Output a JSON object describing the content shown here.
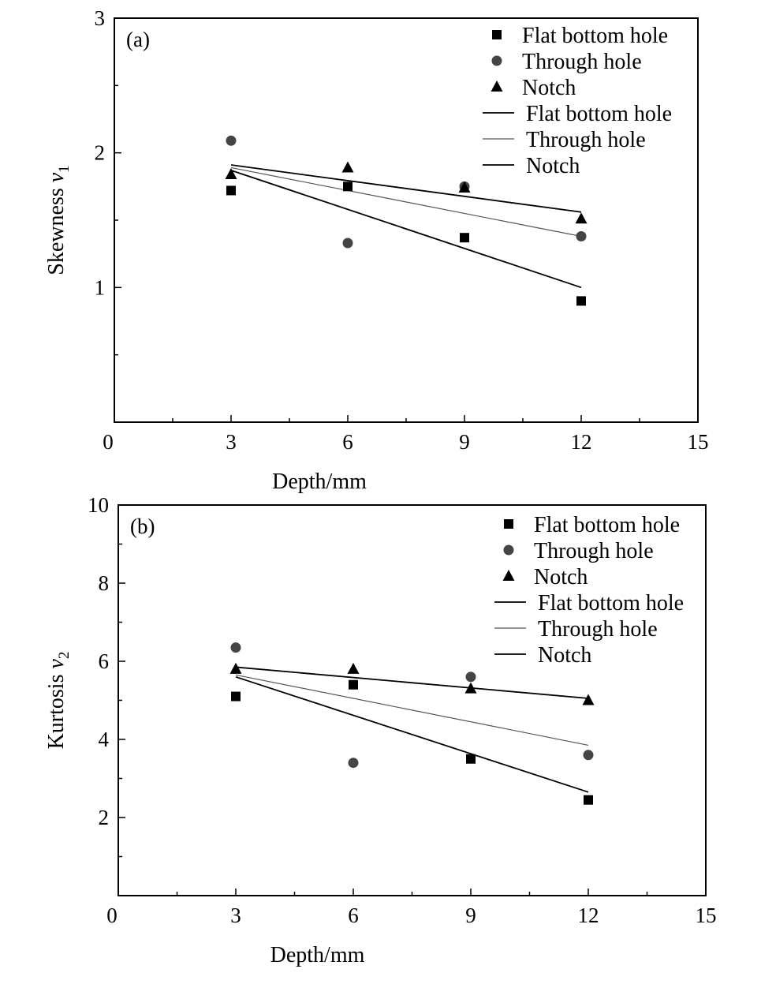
{
  "chart_data": [
    {
      "type": "scatter",
      "panel_label": "(a)",
      "xlabel": "Depth/mm",
      "ylabel_main": "Skewness ",
      "ylabel_var": "v",
      "ylabel_sub": "1",
      "xlim": [
        0,
        15
      ],
      "ylim": [
        0,
        3
      ],
      "xticks": [
        0,
        3,
        6,
        9,
        12,
        15
      ],
      "xtick_labels": [
        "0",
        "3",
        "6",
        "9",
        "12",
        "15"
      ],
      "yticks": [
        1,
        2,
        3
      ],
      "ytick_labels": [
        "1",
        "2",
        "3"
      ],
      "x_minor_step": 1.5,
      "y_minor_step": 0.5,
      "series": [
        {
          "name": "Flat bottom hole",
          "marker": "square",
          "color": "#000000",
          "x": [
            3,
            6,
            9,
            12
          ],
          "y": [
            1.72,
            1.75,
            1.37,
            0.9
          ]
        },
        {
          "name": "Through hole",
          "marker": "circle",
          "color": "#444444",
          "x": [
            3,
            6,
            9,
            12
          ],
          "y": [
            2.09,
            1.33,
            1.75,
            1.38
          ]
        },
        {
          "name": "Notch",
          "marker": "triangle",
          "color": "#000000",
          "x": [
            3,
            6,
            9,
            12
          ],
          "y": [
            1.84,
            1.89,
            1.74,
            1.51
          ]
        }
      ],
      "fits": [
        {
          "name": "Flat bottom hole",
          "color": "#000000",
          "width": 1.8,
          "x": [
            3,
            12
          ],
          "y": [
            1.87,
            1.0
          ]
        },
        {
          "name": "Through hole",
          "color": "#555555",
          "width": 1.2,
          "x": [
            3,
            12
          ],
          "y": [
            1.89,
            1.38
          ]
        },
        {
          "name": "Notch",
          "color": "#000000",
          "width": 1.8,
          "x": [
            3,
            12
          ],
          "y": [
            1.91,
            1.56
          ]
        }
      ],
      "legend": {
        "position": "top-right",
        "entries": [
          {
            "label": "Flat bottom hole",
            "kind": "marker",
            "marker": "square",
            "color": "#000000"
          },
          {
            "label": "Through hole",
            "kind": "marker",
            "marker": "circle",
            "color": "#444444"
          },
          {
            "label": "Notch",
            "kind": "marker",
            "marker": "triangle",
            "color": "#000000"
          },
          {
            "label": "Flat bottom hole",
            "kind": "line",
            "color": "#000000"
          },
          {
            "label": "Through hole",
            "kind": "line",
            "color": "#555555"
          },
          {
            "label": "Notch",
            "kind": "line",
            "color": "#000000"
          }
        ]
      }
    },
    {
      "type": "scatter",
      "panel_label": "(b)",
      "xlabel": "Depth/mm",
      "ylabel_main": "Kurtosis ",
      "ylabel_var": "v",
      "ylabel_sub": "2",
      "xlim": [
        0,
        15
      ],
      "ylim": [
        0,
        10
      ],
      "xticks": [
        0,
        3,
        6,
        9,
        12,
        15
      ],
      "xtick_labels": [
        "0",
        "3",
        "6",
        "9",
        "12",
        "15"
      ],
      "yticks": [
        2,
        4,
        6,
        8,
        10
      ],
      "ytick_labels": [
        "2",
        "4",
        "6",
        "8",
        "10"
      ],
      "x_minor_step": 1.5,
      "y_minor_step": 1,
      "series": [
        {
          "name": "Flat bottom hole",
          "marker": "square",
          "color": "#000000",
          "x": [
            3,
            6,
            9,
            12
          ],
          "y": [
            5.1,
            5.4,
            3.5,
            2.45
          ]
        },
        {
          "name": "Through hole",
          "marker": "circle",
          "color": "#444444",
          "x": [
            3,
            6,
            9,
            12
          ],
          "y": [
            6.35,
            3.4,
            5.6,
            3.6
          ]
        },
        {
          "name": "Notch",
          "marker": "triangle",
          "color": "#000000",
          "x": [
            3,
            6,
            9,
            12
          ],
          "y": [
            5.8,
            5.8,
            5.3,
            5.0
          ]
        }
      ],
      "fits": [
        {
          "name": "Flat bottom hole",
          "color": "#000000",
          "width": 1.8,
          "x": [
            3,
            12
          ],
          "y": [
            5.6,
            2.65
          ]
        },
        {
          "name": "Through hole",
          "color": "#555555",
          "width": 1.2,
          "x": [
            3,
            12
          ],
          "y": [
            5.65,
            3.85
          ]
        },
        {
          "name": "Notch",
          "color": "#000000",
          "width": 1.8,
          "x": [
            3,
            12
          ],
          "y": [
            5.85,
            5.05
          ]
        }
      ],
      "legend": {
        "position": "top-right",
        "entries": [
          {
            "label": "Flat bottom hole",
            "kind": "marker",
            "marker": "square",
            "color": "#000000"
          },
          {
            "label": "Through hole",
            "kind": "marker",
            "marker": "circle",
            "color": "#444444"
          },
          {
            "label": "Notch",
            "kind": "marker",
            "marker": "triangle",
            "color": "#000000"
          },
          {
            "label": "Flat bottom hole",
            "kind": "line",
            "color": "#000000"
          },
          {
            "label": "Through hole",
            "kind": "line",
            "color": "#555555"
          },
          {
            "label": "Notch",
            "kind": "line",
            "color": "#000000"
          }
        ]
      }
    }
  ]
}
